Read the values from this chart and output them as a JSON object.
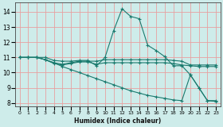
{
  "xlabel": "Humidex (Indice chaleur)",
  "xlim": [
    -0.5,
    23.5
  ],
  "ylim": [
    7.8,
    14.6
  ],
  "yticks": [
    8,
    9,
    10,
    11,
    12,
    13,
    14
  ],
  "xticks": [
    0,
    1,
    2,
    3,
    4,
    5,
    6,
    7,
    8,
    9,
    10,
    11,
    12,
    13,
    14,
    15,
    16,
    17,
    18,
    19,
    20,
    21,
    22,
    23
  ],
  "bg_color": "#ceecea",
  "grid_color": "#e8a0a0",
  "line_color": "#1a7a6e",
  "lines": [
    {
      "x": [
        0,
        1,
        2,
        3,
        4,
        5,
        6,
        7,
        8,
        9,
        10,
        11,
        12,
        13,
        14,
        15,
        16,
        17,
        18,
        19,
        20,
        21,
        22,
        23
      ],
      "y": [
        11,
        11,
        11,
        11,
        10.8,
        10.75,
        10.75,
        10.8,
        10.8,
        10.45,
        11.0,
        12.75,
        14.2,
        13.7,
        13.55,
        11.8,
        11.45,
        11.05,
        10.45,
        10.45,
        9.85,
        9.0,
        8.15,
        8.15
      ]
    },
    {
      "x": [
        0,
        1,
        2,
        3,
        4,
        5,
        6,
        7,
        8,
        9,
        10,
        11,
        12,
        13,
        14,
        15,
        16,
        17,
        18,
        19,
        20,
        21,
        22,
        23
      ],
      "y": [
        11,
        11,
        11,
        10.85,
        10.65,
        10.55,
        10.65,
        10.75,
        10.75,
        10.75,
        10.85,
        10.85,
        10.85,
        10.85,
        10.85,
        10.85,
        10.85,
        10.85,
        10.8,
        10.75,
        10.5,
        10.5,
        10.5,
        10.5
      ]
    },
    {
      "x": [
        0,
        1,
        2,
        3,
        4,
        5,
        6,
        7,
        8,
        9,
        10,
        11,
        12,
        13,
        14,
        15,
        16,
        17,
        18,
        19,
        20,
        21,
        22,
        23
      ],
      "y": [
        11,
        11,
        11,
        10.85,
        10.6,
        10.5,
        10.6,
        10.7,
        10.7,
        10.55,
        10.65,
        10.65,
        10.65,
        10.65,
        10.65,
        10.65,
        10.65,
        10.65,
        10.6,
        10.5,
        10.45,
        10.4,
        10.4,
        10.4
      ]
    },
    {
      "x": [
        0,
        1,
        2,
        3,
        4,
        5,
        6,
        7,
        8,
        9,
        10,
        11,
        12,
        13,
        14,
        15,
        16,
        17,
        18,
        19,
        20,
        21,
        22,
        23
      ],
      "y": [
        11,
        11,
        11,
        10.85,
        10.65,
        10.4,
        10.2,
        10.0,
        9.8,
        9.6,
        9.4,
        9.2,
        9.0,
        8.8,
        8.65,
        8.5,
        8.4,
        8.3,
        8.2,
        8.15,
        9.85,
        9.0,
        8.15,
        8.1
      ]
    }
  ]
}
